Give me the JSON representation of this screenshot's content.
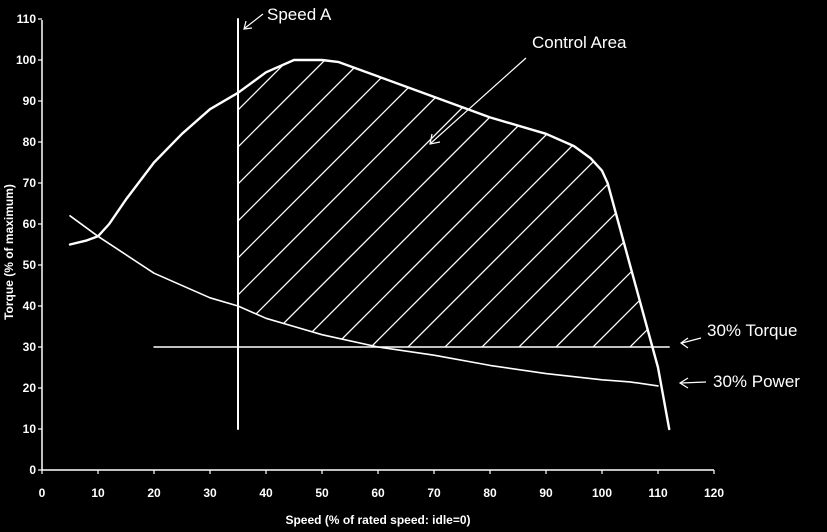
{
  "colors": {
    "background": "#000000",
    "foreground": "#ffffff"
  },
  "chart_data": {
    "type": "line",
    "title": "",
    "xlabel": "Speed (% of rated speed: idle=0)",
    "ylabel": "Torque (% of maximum)",
    "xlim": [
      0,
      120
    ],
    "ylim": [
      0,
      110
    ],
    "xticks": [
      0,
      10,
      20,
      30,
      40,
      50,
      60,
      70,
      80,
      90,
      100,
      110,
      120
    ],
    "yticks": [
      0,
      10,
      20,
      30,
      40,
      50,
      60,
      70,
      80,
      90,
      100,
      110
    ],
    "grid": false,
    "legend": "none",
    "series": [
      {
        "key": "max_torque",
        "x": [
          5,
          8,
          10,
          12,
          15,
          20,
          25,
          30,
          35,
          40,
          45,
          50,
          53,
          60,
          70,
          80,
          90,
          95,
          98,
          100,
          101,
          103,
          105,
          108,
          110,
          112
        ],
        "y": [
          55,
          56,
          57,
          60,
          66,
          75,
          82,
          88,
          92,
          97,
          100,
          100,
          99.5,
          96,
          91,
          86,
          82,
          79,
          76,
          73,
          70,
          60,
          50,
          35,
          25,
          10
        ]
      },
      {
        "key": "power_line",
        "x": [
          5,
          10,
          20,
          30,
          35,
          40,
          45,
          50,
          60,
          70,
          80,
          90,
          100,
          105,
          110
        ],
        "y": [
          62,
          57,
          48,
          42,
          40,
          37,
          35,
          33,
          30,
          28,
          25.5,
          23.5,
          22,
          21.5,
          20.5
        ]
      },
      {
        "key": "torque_30_line",
        "x": [
          20,
          112
        ],
        "y": [
          30,
          30
        ]
      },
      {
        "key": "speed_a_line",
        "x": [
          35,
          35
        ],
        "y": [
          10,
          110
        ]
      }
    ],
    "control_area": {
      "hatched": true,
      "bounded_by": [
        "speed_a_line",
        "max_torque",
        "torque_30_line",
        "power_line"
      ]
    },
    "annotations": [
      {
        "text": "Speed A",
        "points_to": "speed_a_line"
      },
      {
        "text": "Control Area",
        "points_to": "control_area"
      },
      {
        "text": "30% Torque",
        "points_to": "torque_30_line"
      },
      {
        "text": "30% Power",
        "points_to": "power_line"
      }
    ]
  }
}
